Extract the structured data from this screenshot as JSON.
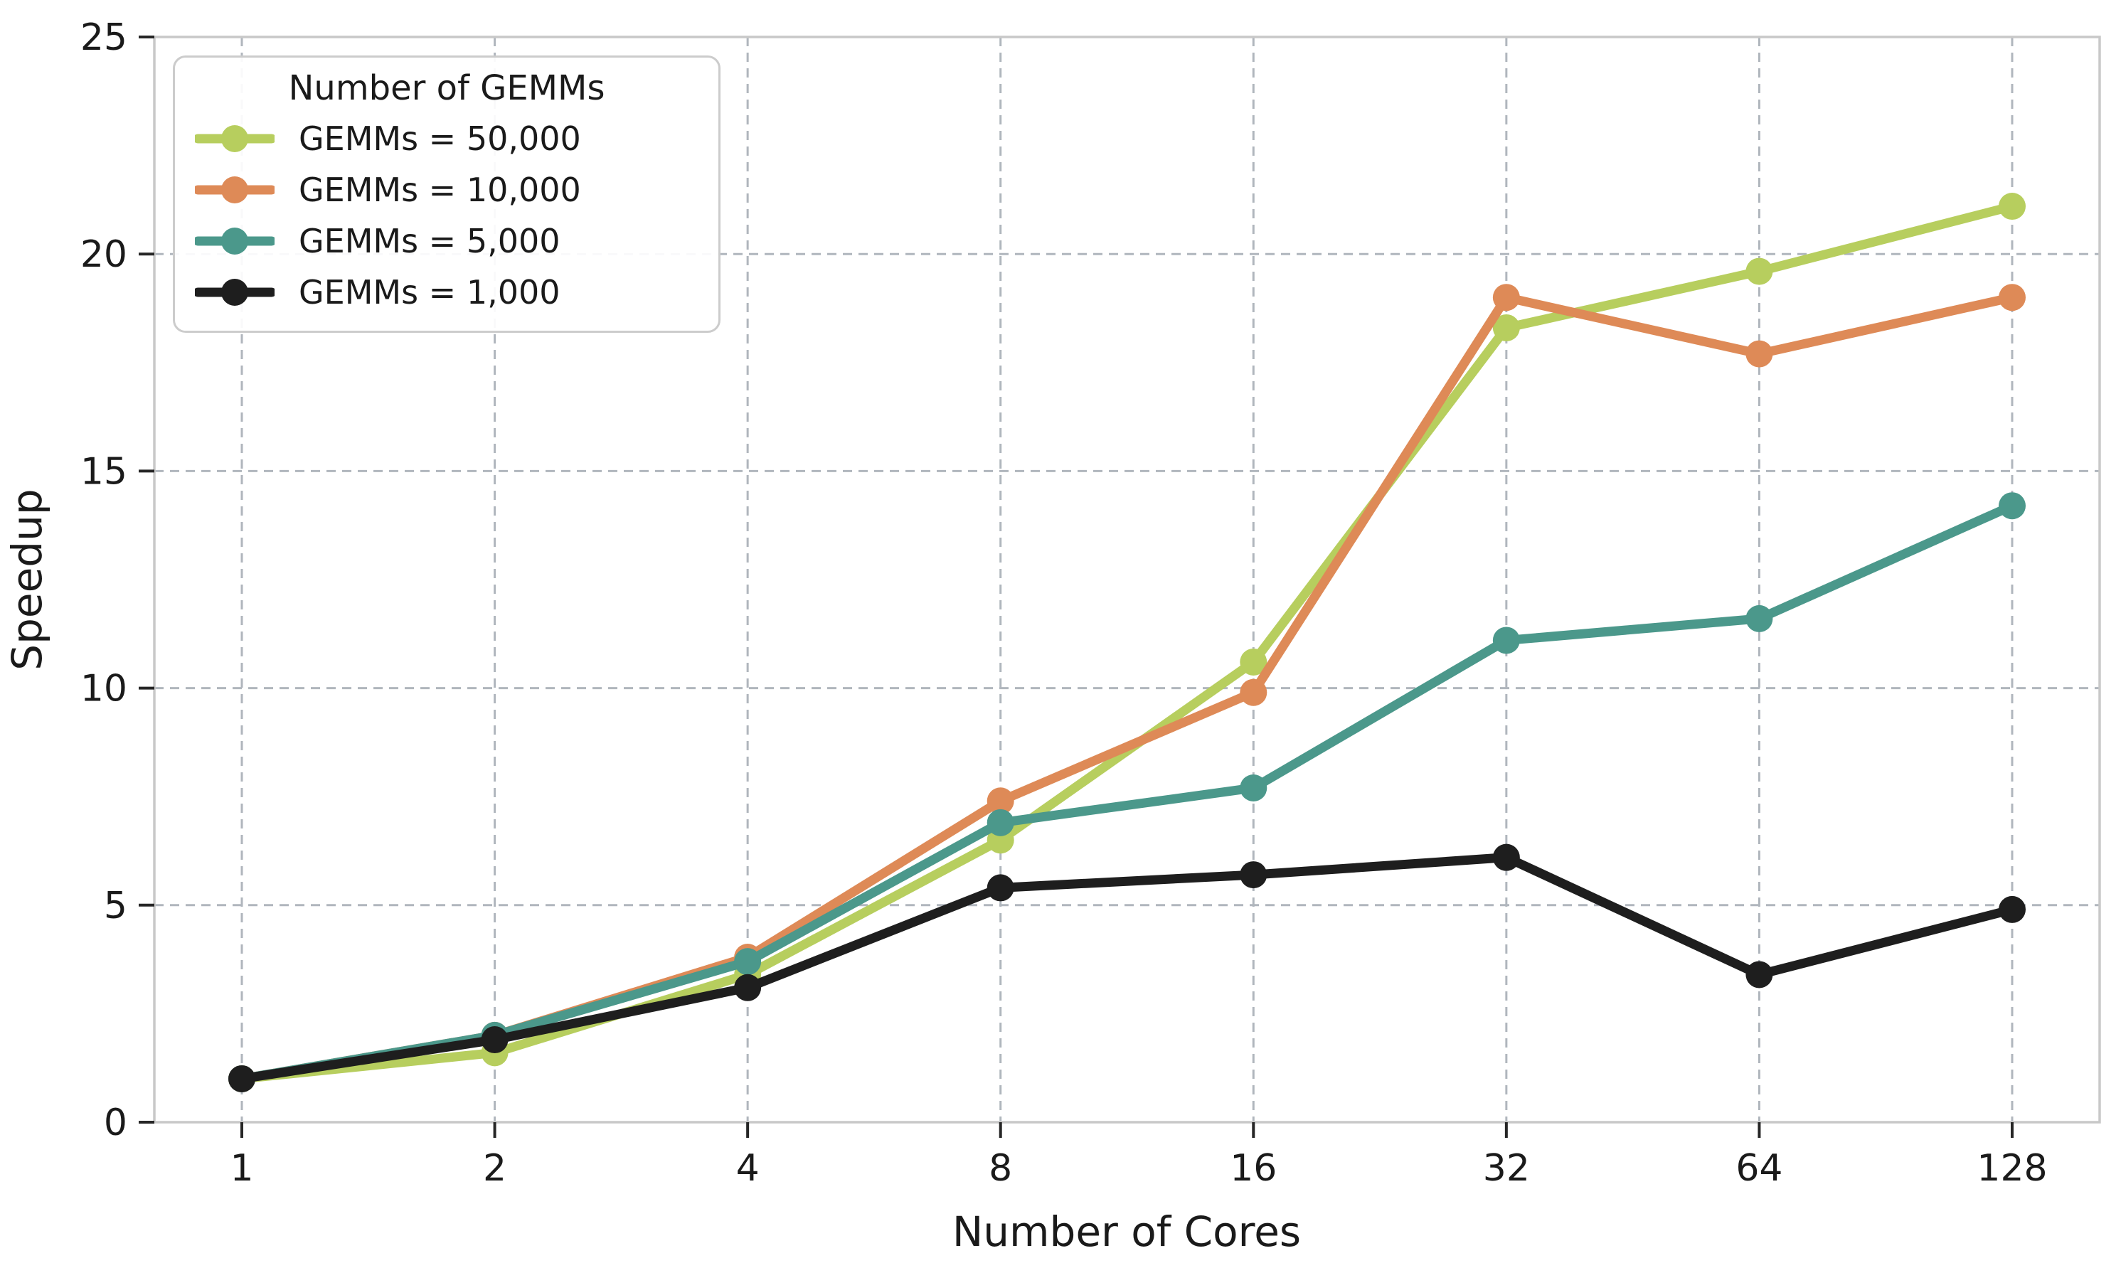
{
  "chart_data": {
    "type": "line",
    "title": "",
    "xlabel": "Number of Cores",
    "ylabel": "Speedup",
    "categories": [
      "1",
      "2",
      "4",
      "8",
      "16",
      "32",
      "64",
      "128"
    ],
    "x_values": [
      1,
      2,
      4,
      8,
      16,
      32,
      64,
      128
    ],
    "x_scale": "log2-categorical-even-spacing",
    "ylim": [
      0,
      25
    ],
    "yticks": [
      0,
      5,
      10,
      15,
      20,
      25
    ],
    "grid": "dashed-both-axes",
    "background_color": "#ffffff",
    "grid_color": "#b0b6bd",
    "spine_color": "#c8c8c8",
    "tick_color": "#262626",
    "text_color": "#1a1a1a",
    "legend": {
      "title": "Number of GEMMs",
      "position": "upper-left"
    },
    "series": [
      {
        "name": "GEMMs = 50,000",
        "color": "#b7ce5e",
        "values": [
          1.0,
          1.6,
          3.4,
          6.5,
          10.6,
          18.3,
          19.6,
          21.1
        ]
      },
      {
        "name": "GEMMs = 10,000",
        "color": "#de8a57",
        "values": [
          1.0,
          2.0,
          3.8,
          7.4,
          9.9,
          19.0,
          17.7,
          19.0
        ]
      },
      {
        "name": "GEMMs = 5,000",
        "color": "#4b988b",
        "values": [
          1.0,
          2.0,
          3.7,
          6.9,
          7.7,
          11.1,
          11.6,
          14.2
        ]
      },
      {
        "name": "GEMMs = 1,000",
        "color": "#1e1e1e",
        "values": [
          1.0,
          1.9,
          3.1,
          5.4,
          5.7,
          6.1,
          3.4,
          4.9
        ]
      }
    ]
  }
}
